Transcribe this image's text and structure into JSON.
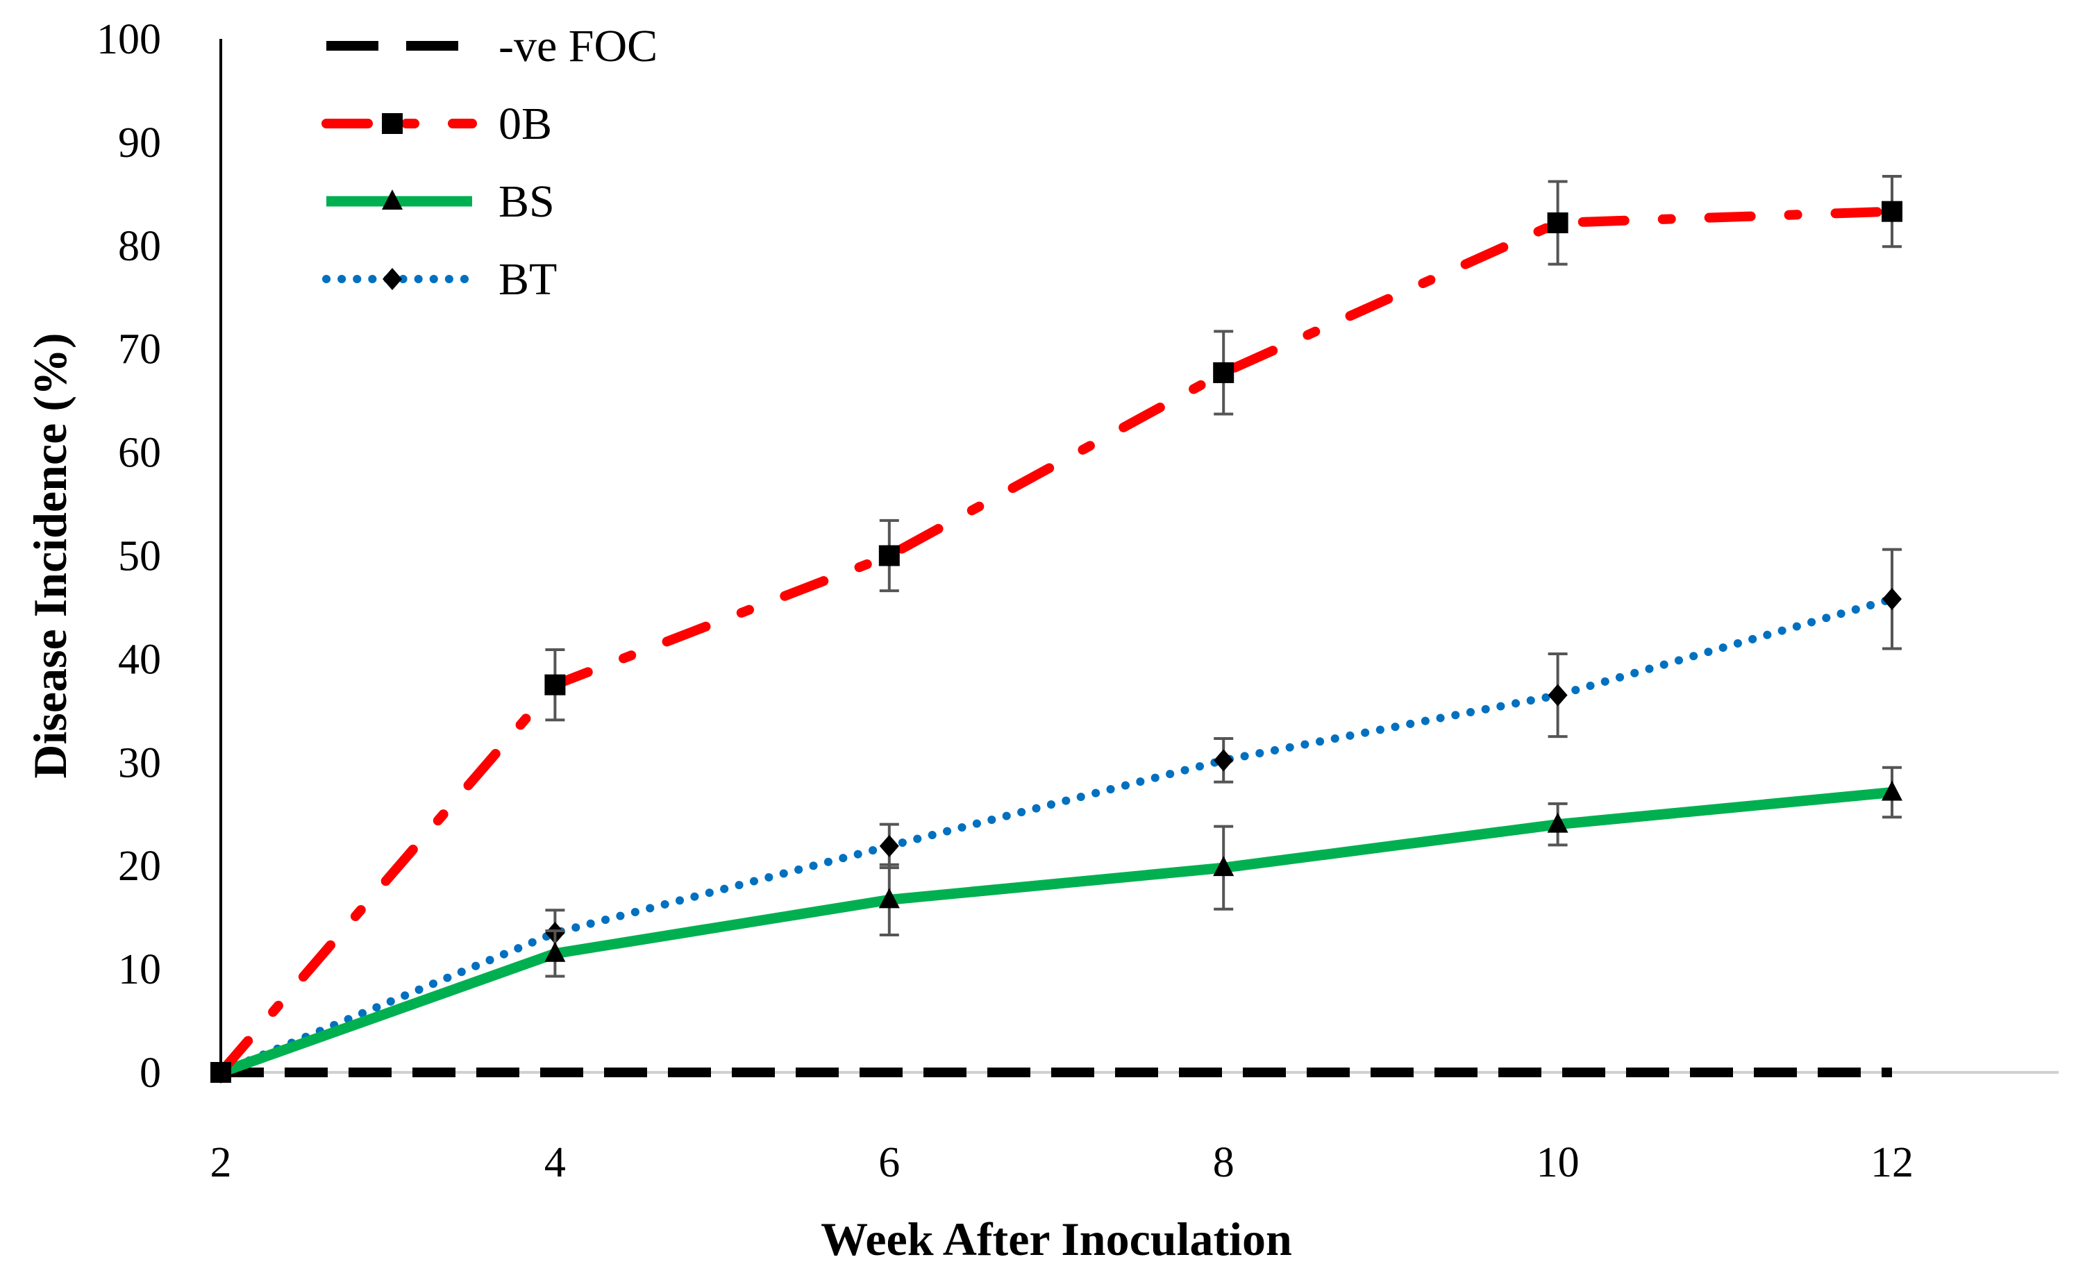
{
  "chart_data": {
    "type": "line",
    "title": "",
    "xlabel": "Week After Inoculation",
    "ylabel": "Disease Incidence (%)",
    "x": [
      2,
      4,
      6,
      8,
      10,
      12
    ],
    "xlim": [
      2,
      13
    ],
    "ylim": [
      0,
      100
    ],
    "xticks": [
      2,
      4,
      6,
      8,
      10,
      12
    ],
    "yticks": [
      0,
      10,
      20,
      30,
      40,
      50,
      60,
      70,
      80,
      90,
      100
    ],
    "grid": false,
    "legend_position": "top-left",
    "series": [
      {
        "name": "-ve FOC",
        "values": [
          0,
          0,
          0,
          0,
          0,
          0
        ],
        "errors": [
          0,
          0,
          0,
          0,
          0,
          0
        ],
        "marker": "none",
        "line": "dashed",
        "color": "#000000"
      },
      {
        "name": "0B",
        "values": [
          0,
          37.5,
          50,
          67.7,
          82.2,
          83.3
        ],
        "errors": [
          0,
          3.4,
          3.4,
          4.0,
          4.0,
          3.4
        ],
        "marker": "square",
        "line": "dash-dot",
        "color": "#ff0000"
      },
      {
        "name": "BS",
        "values": [
          0,
          11.5,
          16.7,
          19.8,
          24.0,
          27.1
        ],
        "errors": [
          0,
          2.2,
          3.4,
          4.0,
          2.0,
          2.4
        ],
        "marker": "triangle",
        "line": "solid",
        "color": "#00b050"
      },
      {
        "name": "BT",
        "values": [
          0,
          13.5,
          21.9,
          30.2,
          36.5,
          45.8
        ],
        "errors": [
          0,
          2.2,
          2.1,
          2.1,
          4.0,
          4.8
        ],
        "marker": "diamond",
        "line": "dotted",
        "color": "#0070c0"
      }
    ]
  }
}
